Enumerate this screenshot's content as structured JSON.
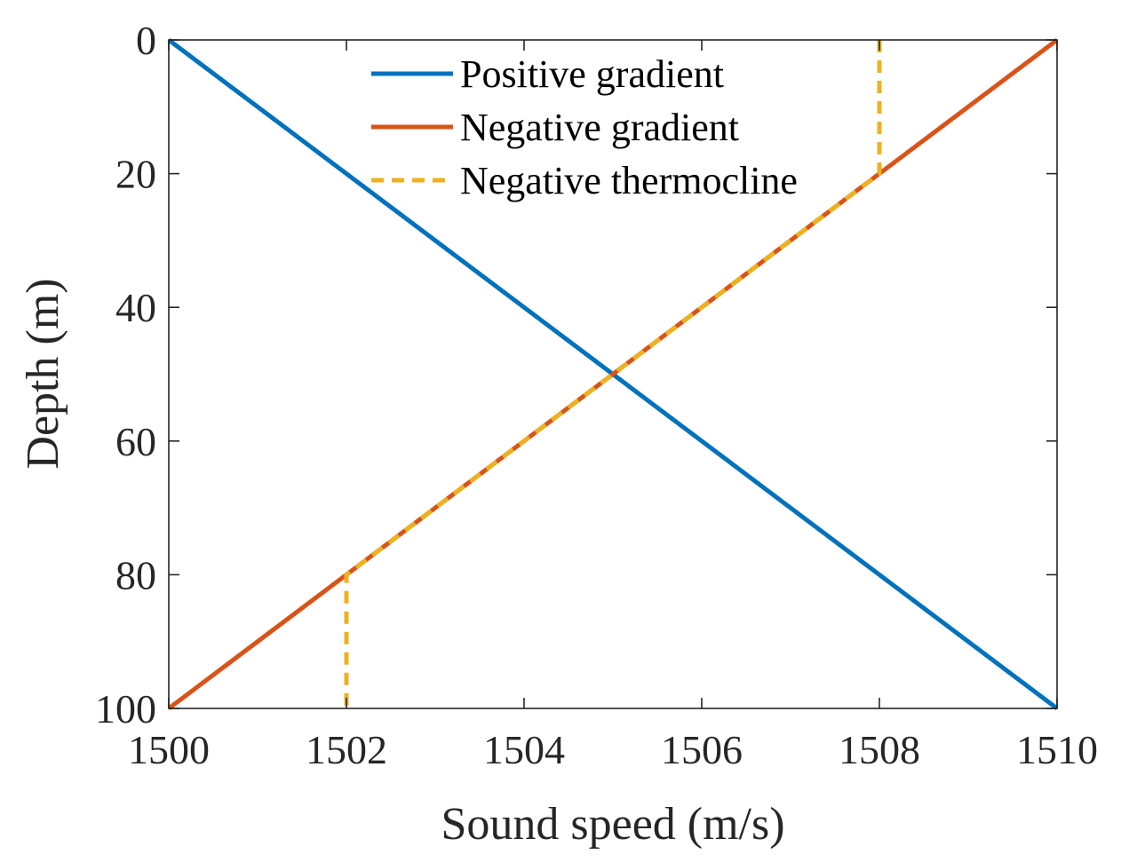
{
  "chart_data": {
    "type": "line",
    "xlabel": "Sound speed (m/s)",
    "ylabel": "Depth (m)",
    "xlim": [
      1500,
      1510
    ],
    "ylim": [
      0,
      100
    ],
    "y_reversed": true,
    "xticks": [
      "1500",
      "1502",
      "1504",
      "1506",
      "1508",
      "1510"
    ],
    "yticks": [
      "0",
      "20",
      "40",
      "60",
      "80",
      "100"
    ],
    "grid": false,
    "legend_position": "top-center",
    "series": [
      {
        "name": "Positive gradient",
        "color": "#0072BD",
        "style": "solid",
        "points": [
          [
            1500,
            0
          ],
          [
            1510,
            100
          ]
        ]
      },
      {
        "name": "Negative gradient",
        "color": "#D95319",
        "style": "solid",
        "points": [
          [
            1510,
            0
          ],
          [
            1500,
            100
          ]
        ]
      },
      {
        "name": "Negative thermocline",
        "color": "#EDB120",
        "style": "dashed",
        "points": [
          [
            1508,
            0
          ],
          [
            1508,
            20
          ],
          [
            1502,
            80
          ],
          [
            1502,
            100
          ]
        ]
      }
    ]
  }
}
